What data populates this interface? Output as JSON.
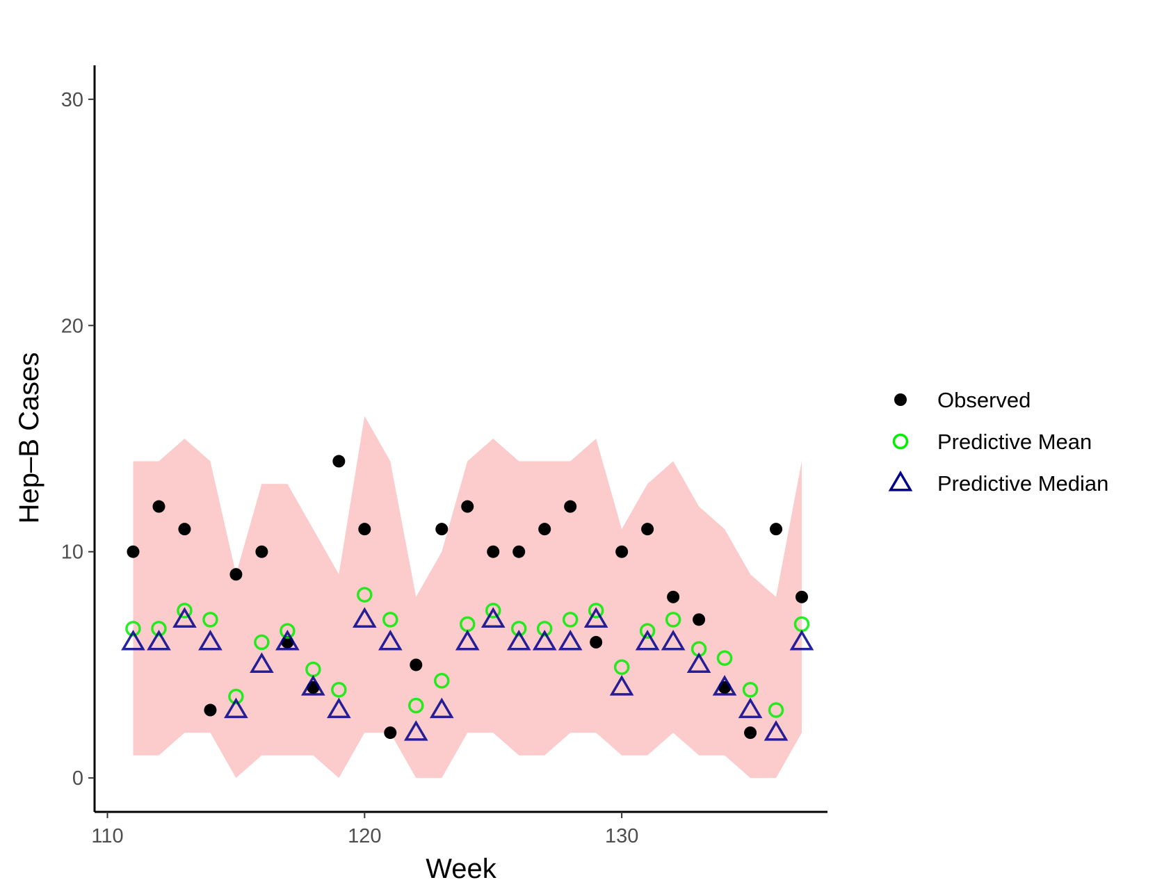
{
  "chart_data": {
    "type": "scatter",
    "xlabel": "Week",
    "ylabel": "Hep–B Cases",
    "xlim": [
      109.5,
      138.0
    ],
    "ylim": [
      -1.5,
      31.5
    ],
    "x_ticks": [
      110,
      120,
      130
    ],
    "y_ticks": [
      0,
      10,
      20,
      30
    ],
    "grid": false,
    "legend_position": "right",
    "x": [
      111,
      112,
      113,
      114,
      115,
      116,
      117,
      118,
      119,
      120,
      121,
      122,
      123,
      124,
      125,
      126,
      127,
      128,
      129,
      130,
      131,
      132,
      133,
      134,
      135,
      136,
      137
    ],
    "interval": {
      "lower": [
        1,
        1,
        2,
        2,
        0,
        1,
        1,
        1,
        0,
        2,
        2,
        0,
        0,
        2,
        2,
        1,
        1,
        2,
        2,
        1,
        1,
        2,
        1,
        1,
        0,
        0,
        2
      ],
      "upper": [
        14,
        14,
        15,
        14,
        9,
        13,
        13,
        11,
        9,
        16,
        14,
        8,
        10,
        14,
        15,
        14,
        14,
        14,
        15,
        11,
        13,
        14,
        12,
        11,
        9,
        8,
        14
      ],
      "color": "#fccbcb"
    },
    "series": [
      {
        "name": "Observed",
        "marker": "filled-circle",
        "color": "#000000",
        "values": [
          10,
          12,
          11,
          3,
          9,
          10,
          6,
          4,
          14,
          11,
          2,
          5,
          11,
          12,
          10,
          10,
          11,
          12,
          6,
          10,
          11,
          8,
          7,
          4,
          2,
          11,
          8
        ]
      },
      {
        "name": "Predictive Mean",
        "marker": "open-circle",
        "color": "#00ee00",
        "values": [
          6.6,
          6.6,
          7.4,
          7.0,
          3.6,
          6.0,
          6.5,
          4.8,
          3.9,
          8.1,
          7.0,
          3.2,
          4.3,
          6.8,
          7.4,
          6.6,
          6.6,
          7.0,
          7.4,
          4.9,
          6.5,
          7.0,
          5.7,
          5.3,
          3.9,
          3.0,
          6.8
        ]
      },
      {
        "name": "Predictive Median",
        "marker": "open-triangle",
        "color": "#00008b",
        "values": [
          6,
          6,
          7,
          6,
          3,
          5,
          6,
          4,
          3,
          7,
          6,
          2,
          3,
          6,
          7,
          6,
          6,
          6,
          7,
          4,
          6,
          6,
          5,
          4,
          3,
          2,
          6
        ]
      }
    ]
  }
}
